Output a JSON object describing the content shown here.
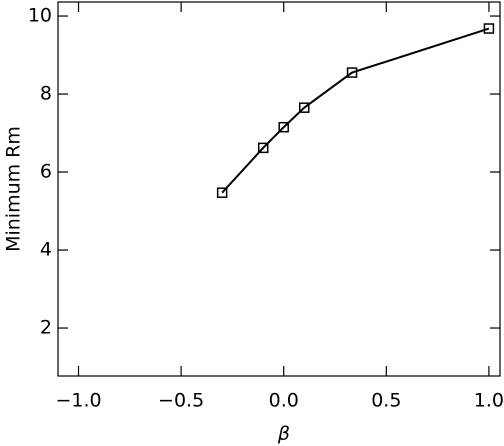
{
  "chart_data": {
    "type": "line",
    "x_label": "β",
    "y_label": "Minimum Rm",
    "x": [
      -0.3,
      -0.1,
      0.0,
      0.1,
      0.333,
      1.0
    ],
    "values": [
      5.47,
      6.62,
      7.15,
      7.65,
      8.55,
      9.68
    ],
    "color": "#000000",
    "marker": "square",
    "xlim": [
      -1.1,
      1.054
    ],
    "ylim": [
      0.77,
      10.36
    ],
    "xticks": [
      {
        "value": -1.0,
        "label": "−1.0"
      },
      {
        "value": -0.5,
        "label": "−0.5"
      },
      {
        "value": 0.0,
        "label": "0.0"
      },
      {
        "value": 0.5,
        "label": "0.5"
      },
      {
        "value": 1.0,
        "label": "1.0"
      }
    ],
    "yticks": [
      2,
      4,
      6,
      8,
      10
    ]
  }
}
